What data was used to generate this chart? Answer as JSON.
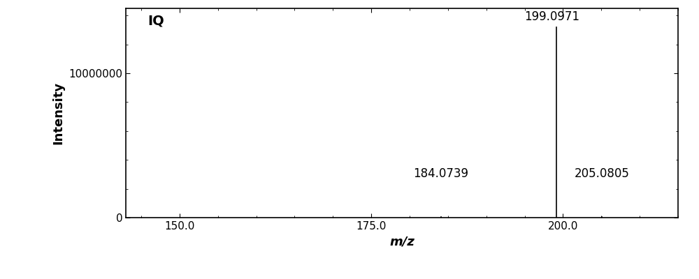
{
  "label": "IQ",
  "peaks": [
    {
      "mz": 184.0739,
      "intensity": 30000,
      "label": "184.0739"
    },
    {
      "mz": 199.0971,
      "intensity": 13200000,
      "label": "199.0971"
    },
    {
      "mz": 205.0805,
      "intensity": 50000,
      "label": "205.0805"
    }
  ],
  "xlim": [
    143.0,
    215.0
  ],
  "ylim": [
    0,
    14500000
  ],
  "yticks": [
    0,
    10000000
  ],
  "ytick_labels": [
    "0",
    "10000000"
  ],
  "xticks": [
    150.0,
    175.0,
    200.0
  ],
  "xtick_labels": [
    "150.0",
    "175.0",
    "200.0"
  ],
  "xlabel": "m/z",
  "ylabel": "Intensity",
  "background_color": "#ffffff",
  "plot_bg_color": "#ffffff",
  "line_color": "#000000",
  "text_color": "#000000",
  "label_fontsize": 12,
  "axis_fontsize": 13,
  "tick_fontsize": 11,
  "iq_fontsize": 14,
  "peak_label_fontsize": 12
}
